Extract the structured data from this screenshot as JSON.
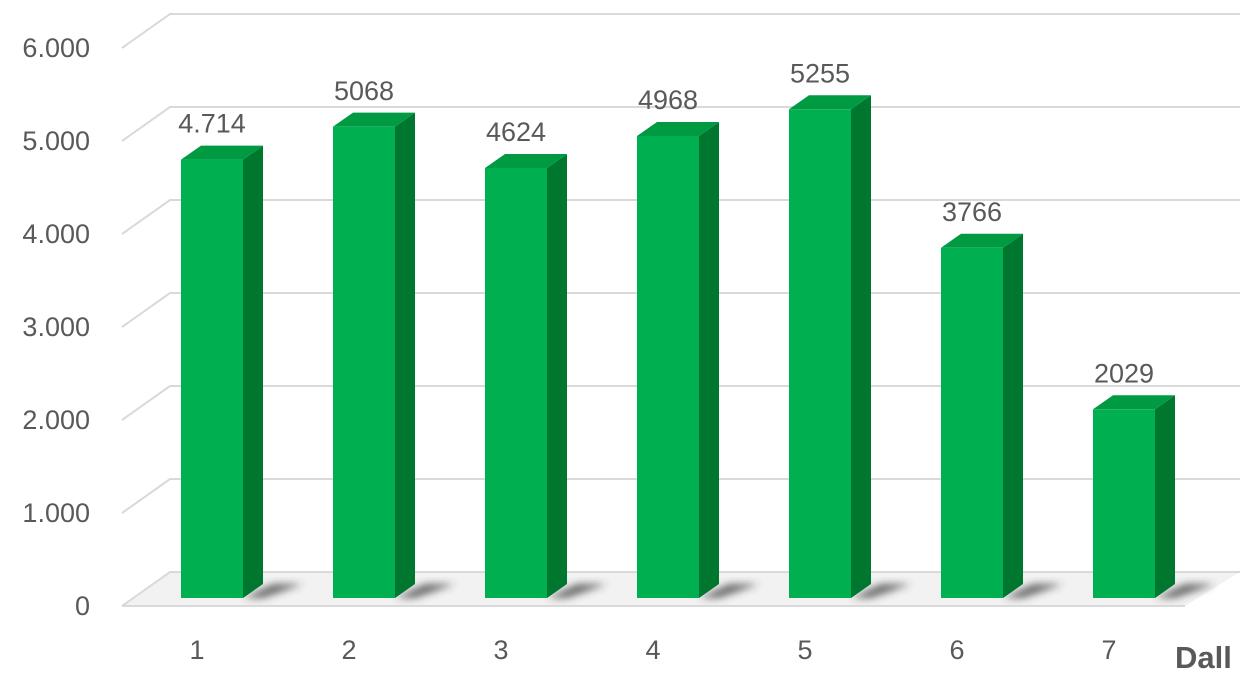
{
  "chart_data": {
    "type": "bar3d",
    "categories": [
      "1",
      "2",
      "3",
      "4",
      "5",
      "6",
      "7"
    ],
    "values": [
      4714,
      5068,
      4624,
      4968,
      5255,
      3766,
      2029
    ],
    "value_labels": [
      "4.714",
      "5068",
      "4624",
      "4968",
      "5255",
      "3766",
      "2029"
    ],
    "color": "#00b050",
    "x_label": "Dall",
    "ylim": [
      0,
      6000
    ],
    "yticks": [
      0,
      {
        "value": 1000,
        "label": "1.000"
      },
      {
        "value": 2000,
        "label": "2.000"
      },
      {
        "value": 3000,
        "label": "3.000"
      },
      {
        "value": 4000,
        "label": "4.000"
      },
      {
        "value": 5000,
        "label": "5.000"
      },
      {
        "value": 6000,
        "label": "6.000"
      }
    ],
    "grid": true
  }
}
